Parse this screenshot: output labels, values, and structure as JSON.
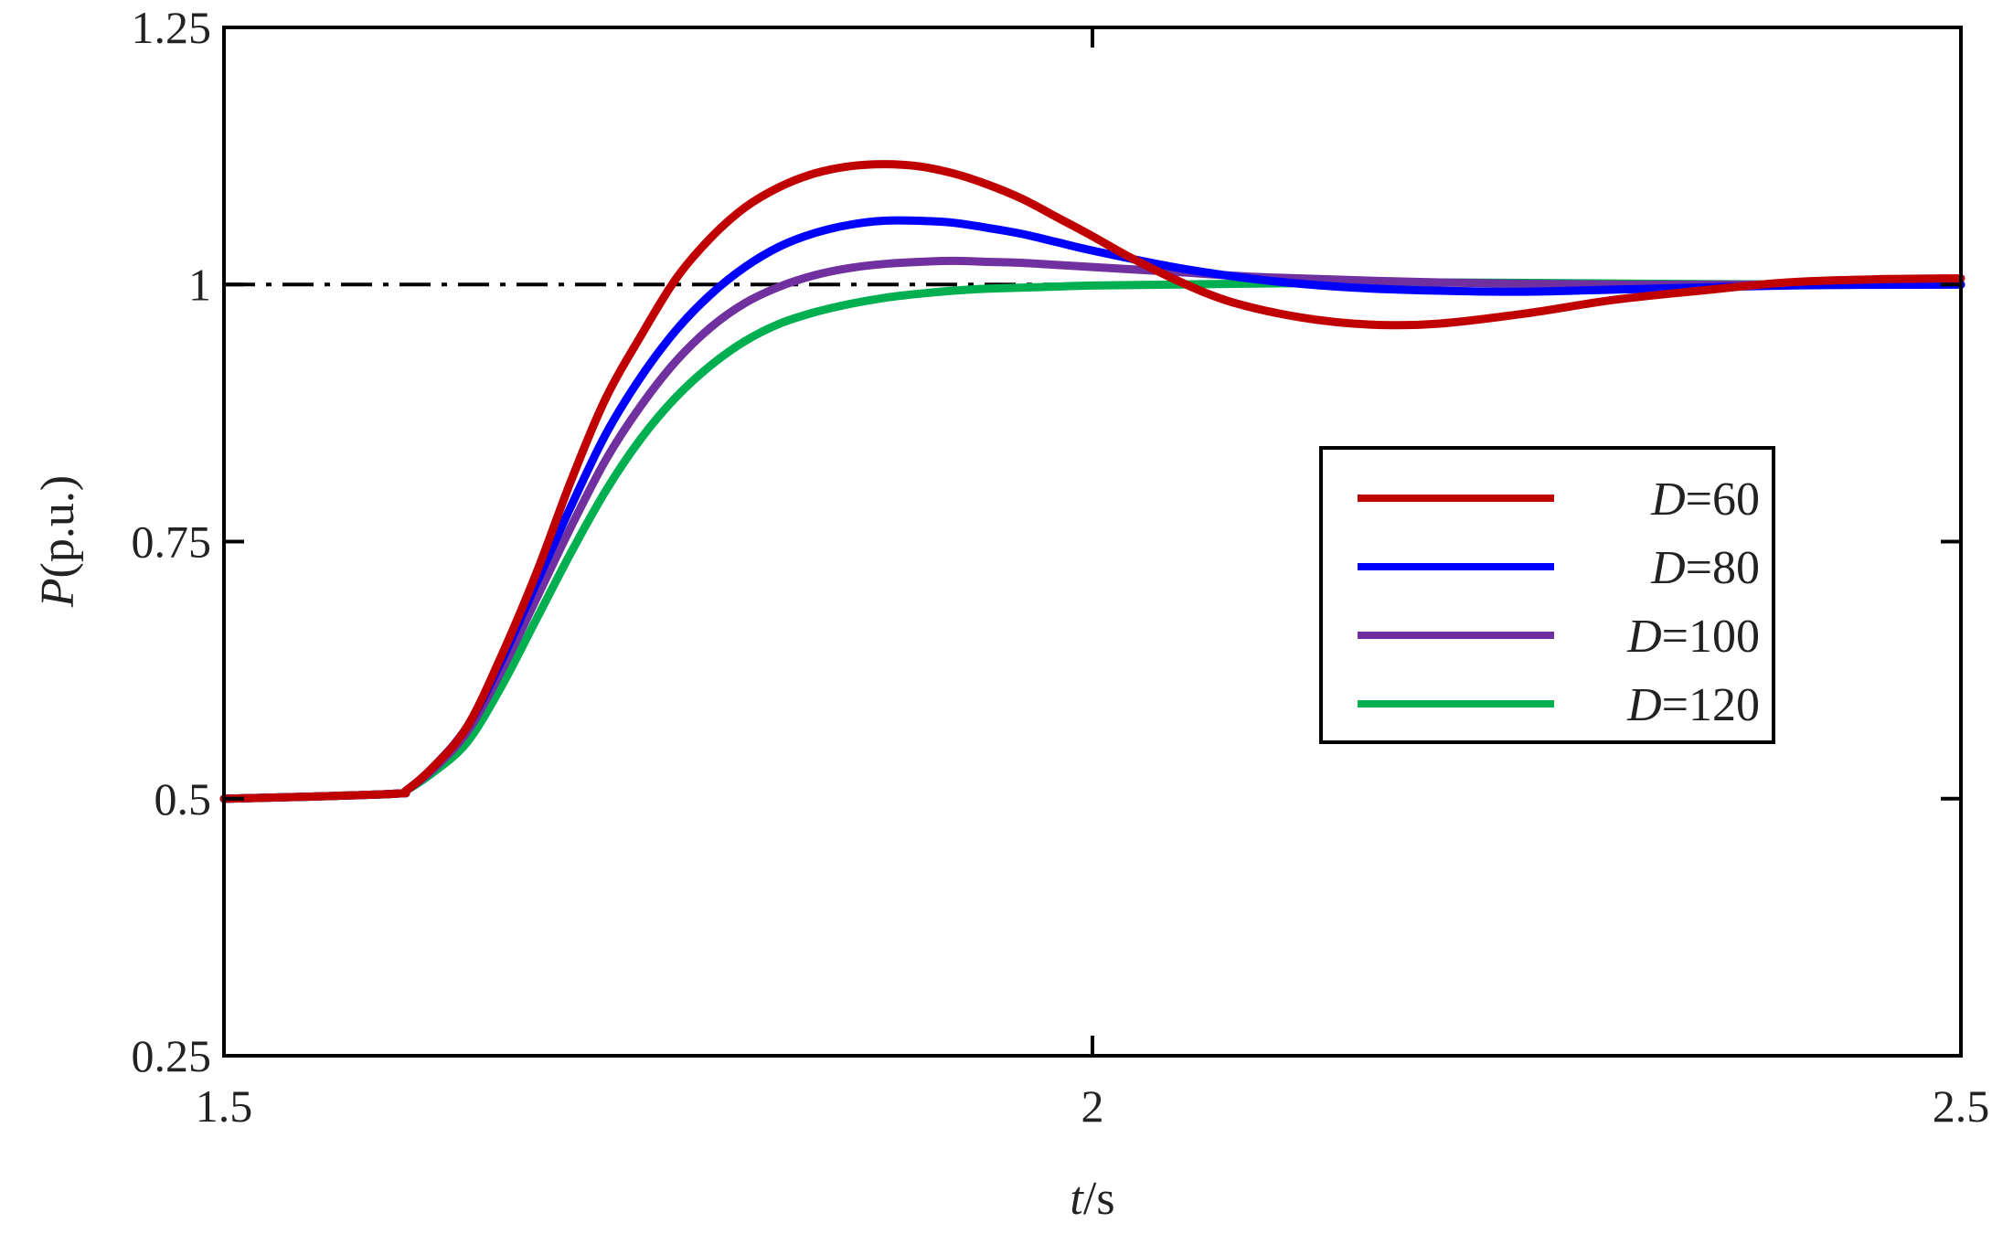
{
  "chart_data": {
    "type": "line",
    "xlabel_italic": "t",
    "xlabel_rest": "/s",
    "ylabel_italic": "P",
    "ylabel_rest": "(p.u.)",
    "xlim": [
      1.5,
      2.5
    ],
    "ylim": [
      0.25,
      1.25
    ],
    "x_ticks": [
      "1.5",
      "2",
      "2.5"
    ],
    "y_ticks": [
      "0.25",
      "0.5",
      "0.75",
      "1",
      "1.25"
    ],
    "grid": false,
    "legend_position": "right-middle",
    "reference_line": {
      "y": 1,
      "style": "dash-dot",
      "color": "#000000"
    },
    "series": [
      {
        "name_italic": "D",
        "name_rest": "=60",
        "color": "#c00000",
        "x": [
          1.5,
          1.55,
          1.6,
          1.605,
          1.62,
          1.64,
          1.66,
          1.68,
          1.7,
          1.72,
          1.74,
          1.76,
          1.78,
          1.8,
          1.82,
          1.84,
          1.86,
          1.88,
          1.9,
          1.92,
          1.94,
          1.96,
          1.98,
          2.0,
          2.02,
          2.05,
          2.08,
          2.12,
          2.16,
          2.2,
          2.25,
          2.3,
          2.35,
          2.4,
          2.45,
          2.5
        ],
        "y": [
          0.5,
          0.502,
          0.505,
          0.508,
          0.53,
          0.57,
          0.64,
          0.72,
          0.81,
          0.89,
          0.95,
          1.005,
          1.045,
          1.075,
          1.095,
          1.108,
          1.115,
          1.117,
          1.115,
          1.108,
          1.097,
          1.083,
          1.065,
          1.047,
          1.028,
          1.003,
          0.983,
          0.968,
          0.961,
          0.962,
          0.972,
          0.985,
          0.994,
          1.002,
          1.005,
          1.006
        ]
      },
      {
        "name_italic": "D",
        "name_rest": "=80",
        "color": "#0000ff",
        "x": [
          1.5,
          1.55,
          1.6,
          1.605,
          1.62,
          1.64,
          1.66,
          1.68,
          1.7,
          1.72,
          1.74,
          1.76,
          1.78,
          1.8,
          1.82,
          1.84,
          1.86,
          1.88,
          1.9,
          1.92,
          1.94,
          1.96,
          1.98,
          2.0,
          2.05,
          2.1,
          2.15,
          2.2,
          2.25,
          2.3,
          2.4,
          2.5
        ],
        "y": [
          0.5,
          0.502,
          0.505,
          0.508,
          0.53,
          0.57,
          0.635,
          0.71,
          0.785,
          0.855,
          0.91,
          0.955,
          0.99,
          1.017,
          1.037,
          1.05,
          1.058,
          1.062,
          1.062,
          1.06,
          1.055,
          1.049,
          1.041,
          1.033,
          1.016,
          1.004,
          0.997,
          0.994,
          0.993,
          0.995,
          0.999,
          1.0
        ]
      },
      {
        "name_italic": "D",
        "name_rest": "=100",
        "color": "#7030a0",
        "x": [
          1.5,
          1.55,
          1.6,
          1.605,
          1.62,
          1.64,
          1.66,
          1.68,
          1.7,
          1.72,
          1.74,
          1.76,
          1.78,
          1.8,
          1.82,
          1.84,
          1.86,
          1.88,
          1.9,
          1.92,
          1.94,
          1.96,
          1.98,
          2.0,
          2.05,
          2.1,
          2.2,
          2.3,
          2.4,
          2.5
        ],
        "y": [
          0.5,
          0.502,
          0.505,
          0.508,
          0.528,
          0.565,
          0.625,
          0.695,
          0.765,
          0.83,
          0.882,
          0.925,
          0.958,
          0.982,
          0.998,
          1.009,
          1.016,
          1.02,
          1.022,
          1.023,
          1.022,
          1.021,
          1.019,
          1.017,
          1.012,
          1.007,
          1.002,
          1.0,
          1.0,
          1.0
        ]
      },
      {
        "name_italic": "D",
        "name_rest": "=120",
        "color": "#00b050",
        "x": [
          1.5,
          1.55,
          1.6,
          1.605,
          1.62,
          1.64,
          1.66,
          1.68,
          1.7,
          1.72,
          1.74,
          1.76,
          1.78,
          1.8,
          1.82,
          1.84,
          1.86,
          1.88,
          1.9,
          1.92,
          1.94,
          1.96,
          1.98,
          2.0,
          2.05,
          2.1,
          2.2,
          2.3,
          2.4,
          2.5
        ],
        "y": [
          0.5,
          0.502,
          0.505,
          0.508,
          0.525,
          0.555,
          0.61,
          0.675,
          0.74,
          0.8,
          0.85,
          0.89,
          0.921,
          0.945,
          0.962,
          0.973,
          0.981,
          0.987,
          0.991,
          0.994,
          0.996,
          0.997,
          0.998,
          0.999,
          1.0,
          1.001,
          1.002,
          1.001,
          1.0,
          1.0
        ]
      }
    ]
  }
}
